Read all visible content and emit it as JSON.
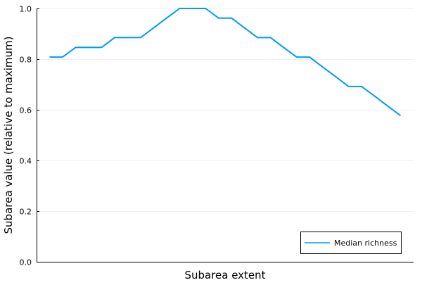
{
  "chart_data": {
    "type": "line",
    "title": "",
    "xlabel": "Subarea extent",
    "ylabel": "Subarea value (relative to maximum)",
    "ylim": [
      0,
      1
    ],
    "xlim": [
      0,
      29
    ],
    "yticks": [
      "0.0",
      "0.2",
      "0.4",
      "0.6",
      "0.8",
      "1.0"
    ],
    "x_tick_labels_shown": false,
    "grid": true,
    "legend_position": "bottom-right",
    "series": [
      {
        "name": "Median richness",
        "color": "#009AF9",
        "x": [
          1,
          2,
          3,
          4,
          5,
          6,
          7,
          8,
          9,
          10,
          11,
          12,
          13,
          14,
          15,
          16,
          17,
          18,
          19,
          20,
          21,
          22,
          23,
          24,
          25,
          26,
          27,
          28
        ],
        "values": [
          0.808,
          0.808,
          0.846,
          0.846,
          0.846,
          0.885,
          0.885,
          0.885,
          0.923,
          0.962,
          1.0,
          1.0,
          1.0,
          0.962,
          0.962,
          0.923,
          0.885,
          0.885,
          0.846,
          0.808,
          0.808,
          0.769,
          0.731,
          0.692,
          0.692,
          0.654,
          0.615,
          0.577
        ]
      }
    ]
  }
}
